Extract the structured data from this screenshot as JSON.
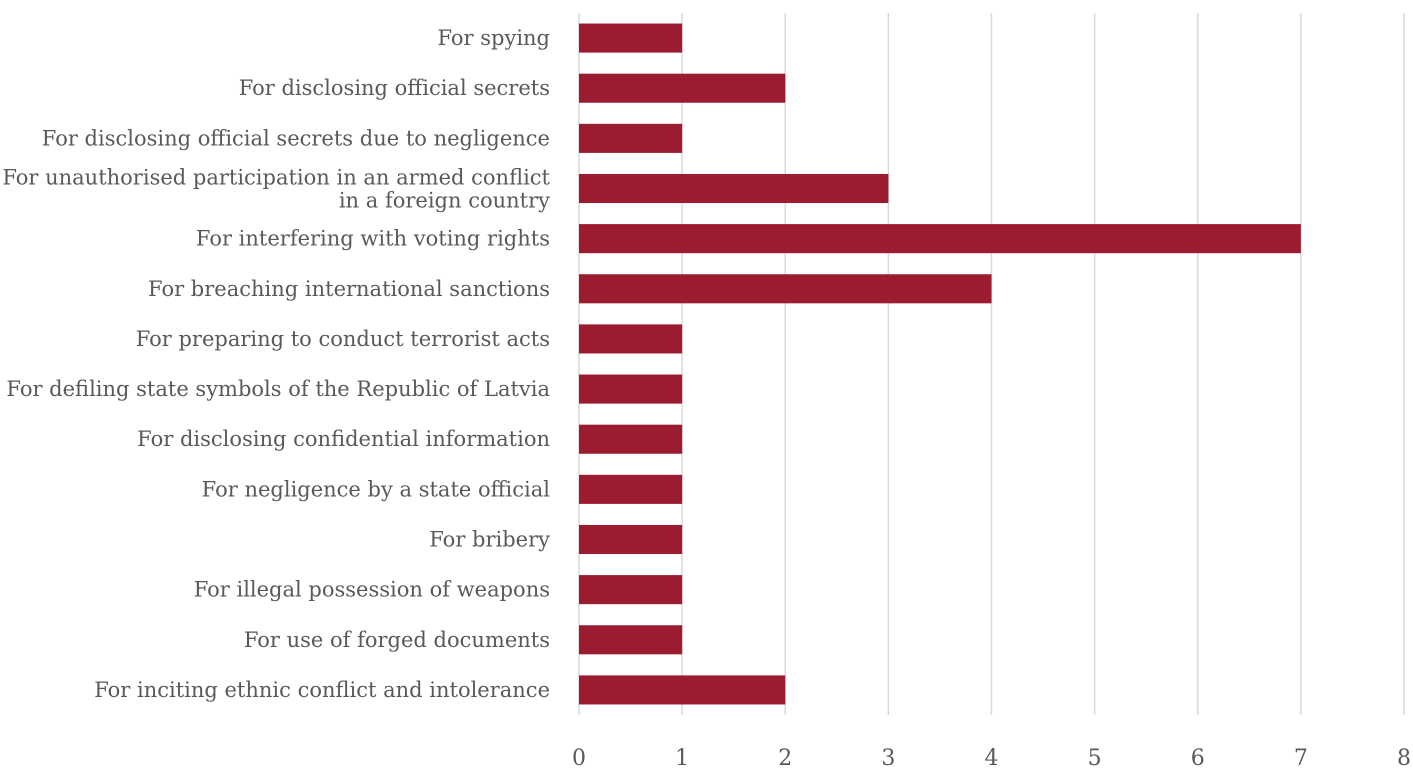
{
  "chart_data": {
    "type": "bar",
    "orientation": "horizontal",
    "title": "",
    "xlabel": "",
    "ylabel": "",
    "categories": [
      "For spying",
      "For disclosing official secrets",
      "For disclosing official secrets due to negligence",
      "For unauthorised participation in an armed conflict in a foreign country",
      "For interfering with voting rights",
      "For breaching international sanctions",
      "For preparing to conduct terrorist acts",
      "For defiling state symbols of the Republic of Latvia",
      "For disclosing confidential information",
      "For negligence by a state official",
      "For bribery",
      "For illegal possession of weapons",
      "For use of forged documents",
      "For inciting ethnic conflict and intolerance"
    ],
    "values": [
      1,
      2,
      1,
      3,
      7,
      4,
      1,
      1,
      1,
      1,
      1,
      1,
      1,
      2
    ],
    "xlim": [
      0,
      8
    ],
    "xticks": [
      "0",
      "1",
      "2",
      "3",
      "4",
      "5",
      "6",
      "7",
      "8"
    ],
    "grid": "vertical",
    "legend": "none",
    "bar_color": "#9b1c31",
    "grid_color": "#d9d9d9",
    "label_color": "#595959"
  }
}
